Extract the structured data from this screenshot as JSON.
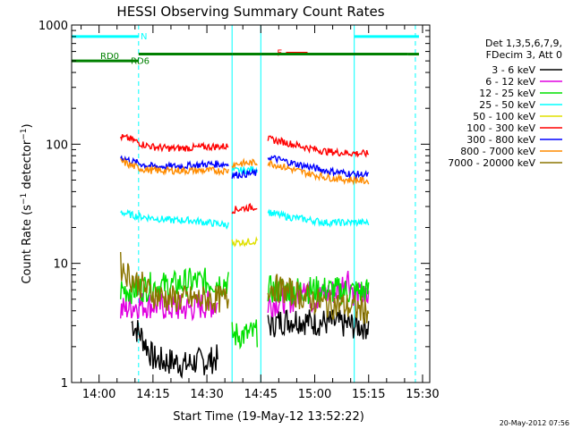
{
  "chart_data": {
    "type": "line",
    "title": "HESSI Observing Summary Count Rates",
    "xlabel": "Start Time (19-May-12 13:52:22)",
    "ylabel": "Count Rate (s^-1 detector^-1)",
    "ylabel_base": "Count Rate (s",
    "ylabel_sup1": "−1",
    "ylabel_mid": " detector",
    "ylabel_sup2": "−1",
    "ylabel_end": ")",
    "yscale": "log",
    "xlim": [
      "13:52:22",
      "15:32:00"
    ],
    "ylim": [
      1,
      1000
    ],
    "x_ticks": [
      "14:00",
      "14:15",
      "14:30",
      "14:45",
      "15:00",
      "15:15",
      "15:30"
    ],
    "y_ticks": [
      "1",
      "10",
      "100",
      "1000"
    ],
    "legend_position": "right",
    "legend_header": [
      "Det 1,3,5,6,7,9,",
      "FDecim 3, Att 0"
    ],
    "footer": "20-May-2012 07:56",
    "series": [
      {
        "name": "3 - 6 keV",
        "color": "#000000",
        "segments": [
          {
            "times": [
              "14:09",
              "14:12",
              "14:15",
              "14:18",
              "14:21",
              "14:24",
              "14:27",
              "14:30",
              "14:33"
            ],
            "values": [
              3.2,
              2.4,
              1.6,
              1.5,
              1.5,
              1.4,
              1.5,
              1.5,
              1.6
            ]
          },
          {
            "times": [
              "14:47",
              "14:51",
              "14:55",
              "14:59",
              "15:03",
              "15:07",
              "15:11",
              "15:15"
            ],
            "values": [
              3.0,
              3.3,
              3.4,
              3.2,
              3.2,
              3.1,
              3.0,
              3.0
            ]
          }
        ]
      },
      {
        "name": "6 - 12 keV",
        "color": "#e000e0",
        "segments": [
          {
            "times": [
              "14:06",
              "14:10",
              "14:15",
              "14:20",
              "14:25",
              "14:30",
              "14:33"
            ],
            "values": [
              4.0,
              4.5,
              4.5,
              4.2,
              4.2,
              4.5,
              4.5
            ]
          },
          {
            "times": [
              "14:47",
              "14:51",
              "14:55",
              "14:57",
              "14:59",
              "15:03",
              "15:07",
              "15:09",
              "15:11",
              "15:15"
            ],
            "values": [
              4.5,
              5.0,
              5.0,
              7.5,
              5.0,
              5.5,
              6.0,
              8.0,
              5.5,
              5.0
            ]
          }
        ]
      },
      {
        "name": "12 - 25 keV",
        "color": "#00e000",
        "segments": [
          {
            "times": [
              "14:06",
              "14:10",
              "14:15",
              "14:20",
              "14:25",
              "14:30",
              "14:36"
            ],
            "values": [
              6.0,
              6.0,
              6.5,
              6.5,
              7.0,
              7.0,
              7.0
            ]
          },
          {
            "times": [
              "14:37",
              "14:40",
              "14:44"
            ],
            "values": [
              2.5,
              2.5,
              2.6
            ]
          },
          {
            "times": [
              "14:47",
              "14:55",
              "15:03",
              "15:11",
              "15:15"
            ],
            "values": [
              6.0,
              6.0,
              6.0,
              5.8,
              5.8
            ]
          }
        ]
      },
      {
        "name": "25 - 50 keV",
        "color": "#00ffff",
        "segments": [
          {
            "times": [
              "14:06",
              "14:10",
              "14:15",
              "14:20",
              "14:25",
              "14:30",
              "14:36"
            ],
            "values": [
              27,
              25,
              24,
              23,
              23,
              22,
              21
            ]
          },
          {
            "times": [
              "14:37",
              "14:40",
              "14:44"
            ],
            "values": [
              60,
              60,
              62
            ]
          },
          {
            "times": [
              "14:47",
              "14:51",
              "14:55",
              "14:59",
              "15:03",
              "15:07",
              "15:11",
              "15:15"
            ],
            "values": [
              27,
              25,
              24,
              23,
              22,
              22,
              22,
              22
            ]
          }
        ]
      },
      {
        "name": "50 - 100 keV",
        "color": "#e0e000",
        "segments": [
          {
            "times": [
              "14:37",
              "14:40",
              "14:44"
            ],
            "values": [
              15,
              15,
              15.5
            ]
          }
        ]
      },
      {
        "name": "100 - 300 keV",
        "color": "#ff0000",
        "segments": [
          {
            "times": [
              "14:06",
              "14:09",
              "14:12",
              "14:15",
              "14:20",
              "14:25",
              "14:30",
              "14:36"
            ],
            "values": [
              115,
              110,
              100,
              95,
              92,
              93,
              95,
              96
            ]
          },
          {
            "times": [
              "14:37",
              "14:40",
              "14:44"
            ],
            "values": [
              28,
              29,
              30
            ]
          },
          {
            "times": [
              "14:47",
              "14:51",
              "14:55",
              "14:59",
              "15:03",
              "15:07",
              "15:11",
              "15:15"
            ],
            "values": [
              110,
              105,
              98,
              92,
              87,
              85,
              84,
              83
            ]
          }
        ]
      },
      {
        "name": "300 - 800 keV",
        "color": "#0000ff",
        "segments": [
          {
            "times": [
              "14:06",
              "14:09",
              "14:12",
              "14:15",
              "14:20",
              "14:25",
              "14:30",
              "14:36"
            ],
            "values": [
              78,
              72,
              68,
              65,
              65,
              66,
              68,
              68
            ]
          },
          {
            "times": [
              "14:37",
              "14:40",
              "14:44"
            ],
            "values": [
              55,
              56,
              57
            ]
          },
          {
            "times": [
              "14:47",
              "14:51",
              "14:55",
              "14:59",
              "15:03",
              "15:07",
              "15:11",
              "15:15"
            ],
            "values": [
              78,
              73,
              68,
              64,
              60,
              58,
              56,
              55
            ]
          }
        ]
      },
      {
        "name": "800 - 7000 keV",
        "color": "#ff8c00",
        "segments": [
          {
            "times": [
              "14:06",
              "14:09",
              "14:12",
              "14:15",
              "14:20",
              "14:25",
              "14:30",
              "14:36"
            ],
            "values": [
              72,
              66,
              62,
              60,
              60,
              60,
              60,
              60
            ]
          },
          {
            "times": [
              "14:37",
              "14:40",
              "14:44"
            ],
            "values": [
              68,
              69,
              70
            ]
          },
          {
            "times": [
              "14:47",
              "14:51",
              "14:55",
              "14:59",
              "15:03",
              "15:07",
              "15:11",
              "15:15"
            ],
            "values": [
              70,
              65,
              60,
              56,
              53,
              51,
              50,
              49
            ]
          }
        ]
      },
      {
        "name": "7000 - 20000 keV",
        "color": "#8b7500",
        "segments": [
          {
            "times": [
              "14:06",
              "14:09",
              "14:12",
              "14:15",
              "14:20",
              "14:25",
              "14:30",
              "14:36"
            ],
            "values": [
              9.5,
              7.5,
              6.5,
              5.5,
              5.0,
              5.0,
              5.0,
              5.0
            ]
          },
          {
            "times": [
              "14:47",
              "14:51",
              "14:55",
              "14:59",
              "15:03",
              "15:07",
              "15:11",
              "15:15"
            ],
            "values": [
              6.5,
              6.0,
              5.5,
              5.0,
              4.5,
              4.5,
              4.2,
              4.0
            ]
          }
        ]
      }
    ],
    "annotations": [
      {
        "label": "N",
        "color": "#00ffff",
        "y": 800,
        "segments": [
          [
            "13:52:22",
            "14:11"
          ],
          [
            "15:11",
            "15:29"
          ]
        ]
      },
      {
        "label": "F",
        "color": "#ff0000",
        "y": 580,
        "segments": [
          [
            "14:52",
            "14:58"
          ]
        ]
      },
      {
        "label": "RD0",
        "color": "#008000",
        "y": 500,
        "segments": [
          [
            "13:52:22",
            "14:11"
          ]
        ]
      },
      {
        "label": "RD6",
        "color": "#008000",
        "y": 570,
        "segments": [
          [
            "14:11",
            "14:37"
          ],
          [
            "14:37",
            "14:45"
          ],
          [
            "14:45",
            "15:26"
          ],
          [
            "15:26",
            "15:29"
          ]
        ]
      }
    ],
    "vlines": [
      {
        "time": "13:52:22",
        "color": "#00ffff",
        "style": "solid"
      },
      {
        "time": "14:11",
        "color": "#00ffff",
        "style": "dashed"
      },
      {
        "time": "14:37",
        "color": "#00ffff",
        "style": "solid"
      },
      {
        "time": "14:45",
        "color": "#00ffff",
        "style": "solid"
      },
      {
        "time": "15:11",
        "color": "#00ffff",
        "style": "solid"
      },
      {
        "time": "15:28",
        "color": "#00ffff",
        "style": "dashed"
      }
    ]
  }
}
